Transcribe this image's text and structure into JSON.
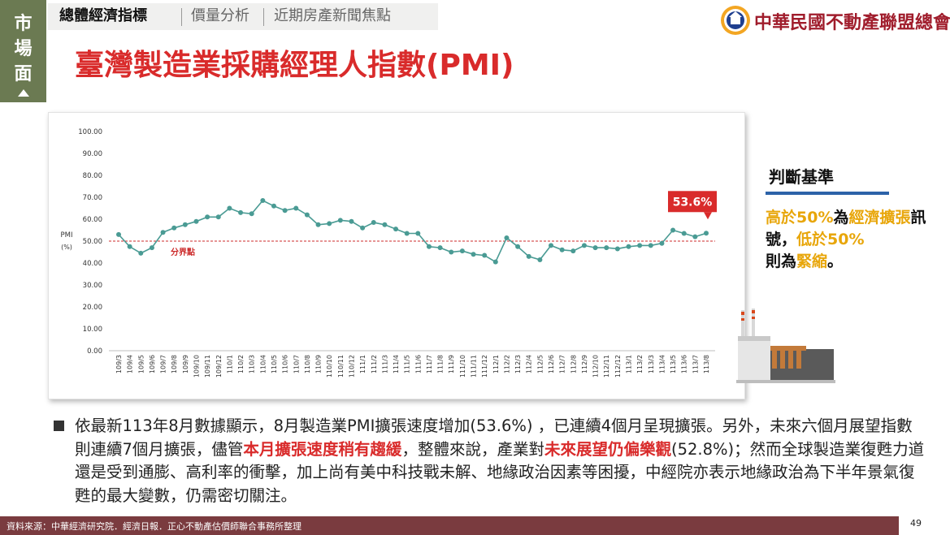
{
  "side_tab": {
    "label": "市場面"
  },
  "nav": {
    "items": [
      {
        "label": "總體經濟指標",
        "active": true
      },
      {
        "label": "價量分析",
        "active": false
      },
      {
        "label": "近期房產新聞焦點",
        "active": false
      }
    ]
  },
  "page_title": "臺灣製造業採購經理人指數(PMI)",
  "logo": {
    "text": "中華民國不動產聯盟總會",
    "icon": "emblem-icon"
  },
  "chart_data": {
    "type": "line",
    "ylabel": "PMI\n(%)",
    "ylim": [
      0,
      100
    ],
    "yticks": [
      "0.00",
      "10.00",
      "20.00",
      "30.00",
      "40.00",
      "50.00",
      "60.00",
      "70.00",
      "80.00",
      "90.00",
      "100.00"
    ],
    "x": [
      "109/3",
      "109/4",
      "109/5",
      "109/6",
      "109/7",
      "109/8",
      "109/9",
      "109/10",
      "109/11",
      "109/12",
      "110/1",
      "110/2",
      "110/3",
      "110/4",
      "110/5",
      "110/6",
      "110/7",
      "110/8",
      "110/9",
      "110/10",
      "110/11",
      "110/12",
      "111/1",
      "111/2",
      "111/3",
      "111/4",
      "111/5",
      "111/6",
      "111/7",
      "111/8",
      "111/9",
      "111/10",
      "111/11",
      "111/12",
      "112/1",
      "112/2",
      "112/3",
      "112/4",
      "112/5",
      "112/6",
      "112/7",
      "112/8",
      "112/9",
      "112/10",
      "112/11",
      "112/12",
      "113/1",
      "113/2",
      "113/3",
      "113/4",
      "113/5",
      "113/6",
      "113/7",
      "113/8"
    ],
    "series": [
      {
        "color": "#4a9b94",
        "values": [
          53.0,
          47.5,
          44.5,
          47.0,
          54.0,
          56.0,
          57.5,
          59.0,
          61.0,
          61.0,
          65.0,
          63.0,
          62.5,
          68.5,
          66.0,
          64.0,
          65.0,
          62.0,
          57.5,
          58.0,
          59.5,
          59.0,
          56.0,
          58.5,
          57.5,
          55.5,
          53.5,
          53.5,
          47.5,
          47.0,
          45.0,
          45.5,
          44.0,
          43.5,
          40.5,
          51.5,
          47.5,
          43.0,
          41.5,
          48.0,
          46.0,
          45.5,
          48.0,
          47.0,
          47.0,
          46.5,
          47.5,
          48.0,
          48.0,
          49.0,
          55.0,
          53.5,
          52.0,
          53.6
        ]
      }
    ],
    "threshold": {
      "value": 50,
      "label": "分界點",
      "color": "#cc2b2b"
    },
    "callout": {
      "label": "53.6%",
      "color": "#d92b2b"
    },
    "grid": false
  },
  "criteria": {
    "title": "判斷基準",
    "line1_a": "高於50%",
    "line1_b": "為",
    "line1_c": "經濟擴張",
    "line2_a": "訊號，",
    "line2_b": "低於50%",
    "line3_a": "則為",
    "line3_b": "緊縮",
    "line3_c": "。"
  },
  "illustration": {
    "icon": "factory-icon"
  },
  "body": {
    "p1": "依最新113年8月數據顯示，8月製造業PMI擴張速度增加(53.6%) ，已連續4個月呈現擴張。另外，未來六個月展望指數則連續7個月擴張，儘管",
    "h1": "本月擴張速度稍有趨緩",
    "p2": "，整體來說，產業對",
    "h2": "未來展望仍偏樂觀",
    "p3": "(52.8%)；然而全球製造業復甦力道還是受到通膨、高利率的衝擊，加上尚有美中科技戰未解、地緣政治因素等困擾，中經院亦表示地緣政治為下半年景氣復甦的最大變數，仍需密切關注。"
  },
  "footer": {
    "source": "資料來源：中華經濟研究院．經濟日報．正心不動產估價師聯合事務所整理"
  },
  "page_number": "49"
}
